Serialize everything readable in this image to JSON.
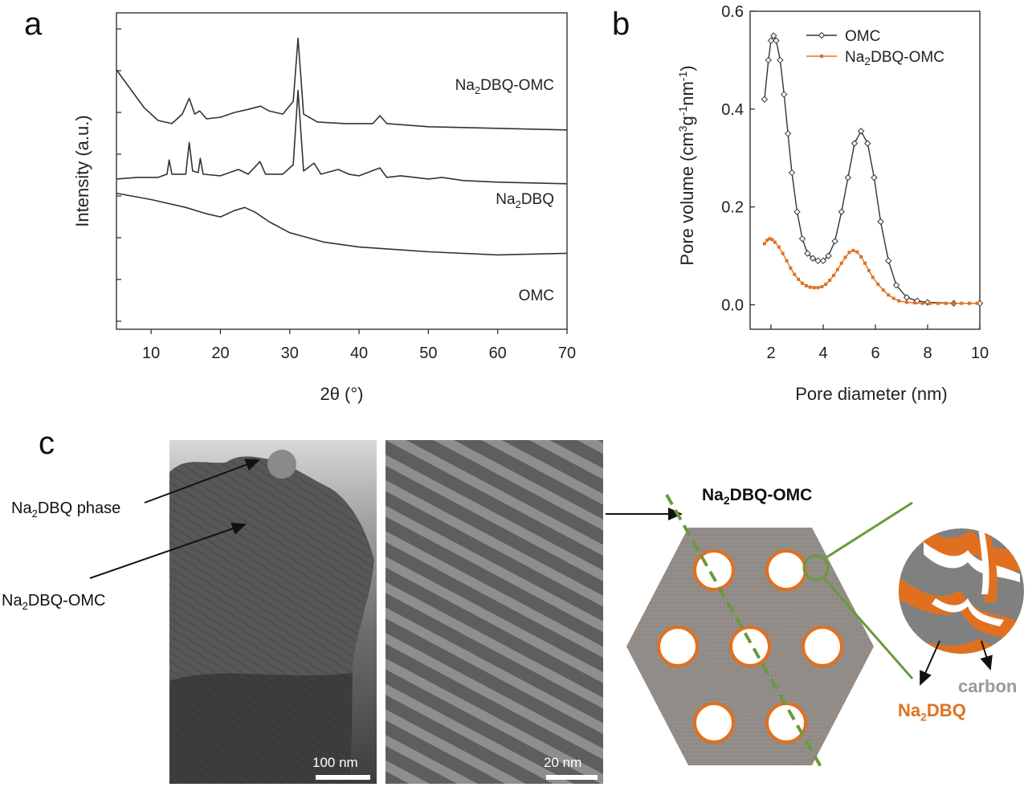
{
  "panels": {
    "a": "a",
    "b": "b",
    "c": "c"
  },
  "chart_data": [
    {
      "panel": "a",
      "type": "line",
      "title": "",
      "xlabel": "2θ (°)",
      "ylabel": "Intensity (a.u.)",
      "xlim": [
        5,
        70
      ],
      "xticks": [
        10,
        20,
        30,
        40,
        50,
        60,
        70
      ],
      "series": [
        {
          "name": "Na2DBQ-OMC",
          "label_main": "Na",
          "label_sub": "2",
          "label_rest": "DBQ-OMC",
          "x": [
            5,
            7,
            9,
            11,
            13,
            14.5,
            15.5,
            16.3,
            17,
            18,
            20,
            22,
            24,
            25.8,
            27,
            29,
            30.5,
            31.2,
            32,
            34,
            38,
            42,
            43,
            44,
            50,
            60,
            70
          ],
          "y": [
            0.82,
            0.76,
            0.7,
            0.66,
            0.65,
            0.68,
            0.73,
            0.68,
            0.69,
            0.665,
            0.67,
            0.685,
            0.695,
            0.705,
            0.69,
            0.68,
            0.72,
            0.92,
            0.68,
            0.655,
            0.65,
            0.65,
            0.675,
            0.65,
            0.64,
            0.635,
            0.63
          ]
        },
        {
          "name": "Na2DBQ",
          "label_main": "Na",
          "label_sub": "2",
          "label_rest": "DBQ",
          "x": [
            5,
            8,
            11,
            12.3,
            12.6,
            13,
            15,
            15.5,
            16,
            16.8,
            17.1,
            17.5,
            20,
            22.6,
            24,
            25.7,
            26.5,
            29,
            30.5,
            31.2,
            32,
            33.5,
            34.5,
            37,
            38.5,
            40,
            43,
            44,
            46,
            50,
            52,
            55,
            60,
            70
          ],
          "y": [
            0.475,
            0.48,
            0.48,
            0.49,
            0.535,
            0.49,
            0.49,
            0.59,
            0.5,
            0.495,
            0.54,
            0.49,
            0.485,
            0.505,
            0.49,
            0.53,
            0.49,
            0.49,
            0.52,
            0.755,
            0.5,
            0.525,
            0.49,
            0.505,
            0.49,
            0.485,
            0.51,
            0.48,
            0.485,
            0.475,
            0.48,
            0.47,
            0.465,
            0.46
          ]
        },
        {
          "name": "OMC",
          "label_main": "OMC",
          "label_sub": "",
          "label_rest": "",
          "x": [
            5,
            10,
            15,
            18,
            20,
            22,
            23.5,
            25,
            27,
            30,
            35,
            40,
            50,
            60,
            70
          ],
          "y": [
            0.43,
            0.41,
            0.385,
            0.365,
            0.355,
            0.375,
            0.385,
            0.37,
            0.34,
            0.305,
            0.275,
            0.26,
            0.245,
            0.235,
            0.24
          ]
        }
      ]
    },
    {
      "panel": "b",
      "type": "line",
      "title": "",
      "xlabel": "Pore diameter (nm)",
      "ylabel": "Pore volume (cm3g-1nm-1)",
      "ylabel_parts": [
        "Pore volume (cm",
        "3",
        "g",
        "-1",
        "nm",
        "-1",
        ")"
      ],
      "xlim": [
        1.2,
        10
      ],
      "ylim": [
        -0.05,
        0.6
      ],
      "xticks": [
        2,
        4,
        6,
        8,
        10
      ],
      "yticks": [
        0.0,
        0.2,
        0.4,
        0.6
      ],
      "yticklabels": [
        "0.0",
        "0.2",
        "0.4",
        "0.6"
      ],
      "legend_position": "top-right",
      "series": [
        {
          "name": "OMC",
          "color": "#333333",
          "marker": "diamond-open",
          "x": [
            1.75,
            1.9,
            2.0,
            2.1,
            2.2,
            2.35,
            2.5,
            2.65,
            2.8,
            3.0,
            3.2,
            3.4,
            3.6,
            3.8,
            4.0,
            4.2,
            4.45,
            4.7,
            4.95,
            5.2,
            5.45,
            5.7,
            5.95,
            6.2,
            6.5,
            6.8,
            7.2,
            7.6,
            8.0,
            9.0,
            10.0
          ],
          "y": [
            0.42,
            0.5,
            0.54,
            0.55,
            0.54,
            0.5,
            0.43,
            0.35,
            0.27,
            0.19,
            0.135,
            0.105,
            0.095,
            0.09,
            0.09,
            0.1,
            0.13,
            0.19,
            0.26,
            0.33,
            0.355,
            0.33,
            0.26,
            0.17,
            0.09,
            0.04,
            0.015,
            0.008,
            0.005,
            0.003,
            0.003
          ]
        },
        {
          "name": "Na2DBQ-OMC",
          "color": "#e07020",
          "marker": "square-filled",
          "x": [
            1.75,
            1.85,
            1.95,
            2.05,
            2.15,
            2.3,
            2.45,
            2.6,
            2.75,
            2.9,
            3.05,
            3.2,
            3.35,
            3.5,
            3.65,
            3.8,
            3.95,
            4.1,
            4.25,
            4.4,
            4.55,
            4.7,
            4.85,
            5.0,
            5.15,
            5.3,
            5.45,
            5.6,
            5.75,
            5.9,
            6.1,
            6.3,
            6.5,
            6.7,
            6.9,
            7.2,
            7.5,
            7.8,
            8.1,
            8.4,
            8.7,
            9.0,
            9.3,
            9.6,
            9.9
          ],
          "y": [
            0.125,
            0.132,
            0.135,
            0.133,
            0.128,
            0.118,
            0.105,
            0.09,
            0.075,
            0.062,
            0.052,
            0.044,
            0.039,
            0.036,
            0.035,
            0.035,
            0.037,
            0.042,
            0.05,
            0.06,
            0.072,
            0.085,
            0.097,
            0.107,
            0.111,
            0.108,
            0.098,
            0.085,
            0.07,
            0.056,
            0.042,
            0.03,
            0.02,
            0.013,
            0.008,
            0.005,
            0.004,
            0.003,
            0.003,
            0.003,
            0.003,
            0.003,
            0.003,
            0.003,
            0.003
          ]
        }
      ]
    }
  ],
  "panel_c": {
    "annotation_phase": {
      "main": "Na",
      "sub": "2",
      "rest": "DBQ phase"
    },
    "annotation_omc": {
      "main": "Na",
      "sub": "2",
      "rest": "DBQ-OMC"
    },
    "scale_left": "100 nm",
    "scale_right": "20 nm",
    "schematic_title": {
      "main": "Na",
      "sub": "2",
      "rest": "DBQ-OMC"
    },
    "label_carbon": "carbon",
    "label_na2dbq": {
      "main": "Na",
      "sub": "2",
      "rest": "DBQ"
    },
    "colors": {
      "orange": "#e07020",
      "green": "#6a9a3a",
      "gray": "#8a8a8a",
      "carbon_text": "#999999"
    }
  }
}
